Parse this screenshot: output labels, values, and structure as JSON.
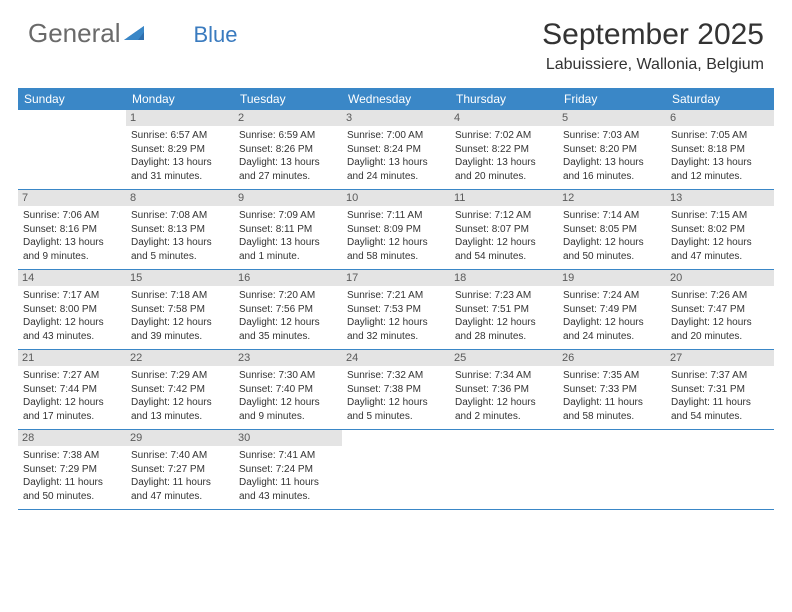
{
  "logo": {
    "text1": "General",
    "text2": "Blue"
  },
  "title": "September 2025",
  "location": "Labuissiere, Wallonia, Belgium",
  "colors": {
    "header_bar": "#3a87c7",
    "day_header_bg": "#e4e4e4",
    "logo_gray": "#6a6a6a",
    "logo_blue": "#3a7bbf",
    "text": "#333333",
    "background": "#ffffff"
  },
  "weekdays": [
    "Sunday",
    "Monday",
    "Tuesday",
    "Wednesday",
    "Thursday",
    "Friday",
    "Saturday"
  ],
  "weeks": [
    [
      {
        "n": "",
        "empty": true
      },
      {
        "n": "1",
        "sunrise": "Sunrise: 6:57 AM",
        "sunset": "Sunset: 8:29 PM",
        "day1": "Daylight: 13 hours",
        "day2": "and 31 minutes."
      },
      {
        "n": "2",
        "sunrise": "Sunrise: 6:59 AM",
        "sunset": "Sunset: 8:26 PM",
        "day1": "Daylight: 13 hours",
        "day2": "and 27 minutes."
      },
      {
        "n": "3",
        "sunrise": "Sunrise: 7:00 AM",
        "sunset": "Sunset: 8:24 PM",
        "day1": "Daylight: 13 hours",
        "day2": "and 24 minutes."
      },
      {
        "n": "4",
        "sunrise": "Sunrise: 7:02 AM",
        "sunset": "Sunset: 8:22 PM",
        "day1": "Daylight: 13 hours",
        "day2": "and 20 minutes."
      },
      {
        "n": "5",
        "sunrise": "Sunrise: 7:03 AM",
        "sunset": "Sunset: 8:20 PM",
        "day1": "Daylight: 13 hours",
        "day2": "and 16 minutes."
      },
      {
        "n": "6",
        "sunrise": "Sunrise: 7:05 AM",
        "sunset": "Sunset: 8:18 PM",
        "day1": "Daylight: 13 hours",
        "day2": "and 12 minutes."
      }
    ],
    [
      {
        "n": "7",
        "sunrise": "Sunrise: 7:06 AM",
        "sunset": "Sunset: 8:16 PM",
        "day1": "Daylight: 13 hours",
        "day2": "and 9 minutes."
      },
      {
        "n": "8",
        "sunrise": "Sunrise: 7:08 AM",
        "sunset": "Sunset: 8:13 PM",
        "day1": "Daylight: 13 hours",
        "day2": "and 5 minutes."
      },
      {
        "n": "9",
        "sunrise": "Sunrise: 7:09 AM",
        "sunset": "Sunset: 8:11 PM",
        "day1": "Daylight: 13 hours",
        "day2": "and 1 minute."
      },
      {
        "n": "10",
        "sunrise": "Sunrise: 7:11 AM",
        "sunset": "Sunset: 8:09 PM",
        "day1": "Daylight: 12 hours",
        "day2": "and 58 minutes."
      },
      {
        "n": "11",
        "sunrise": "Sunrise: 7:12 AM",
        "sunset": "Sunset: 8:07 PM",
        "day1": "Daylight: 12 hours",
        "day2": "and 54 minutes."
      },
      {
        "n": "12",
        "sunrise": "Sunrise: 7:14 AM",
        "sunset": "Sunset: 8:05 PM",
        "day1": "Daylight: 12 hours",
        "day2": "and 50 minutes."
      },
      {
        "n": "13",
        "sunrise": "Sunrise: 7:15 AM",
        "sunset": "Sunset: 8:02 PM",
        "day1": "Daylight: 12 hours",
        "day2": "and 47 minutes."
      }
    ],
    [
      {
        "n": "14",
        "sunrise": "Sunrise: 7:17 AM",
        "sunset": "Sunset: 8:00 PM",
        "day1": "Daylight: 12 hours",
        "day2": "and 43 minutes."
      },
      {
        "n": "15",
        "sunrise": "Sunrise: 7:18 AM",
        "sunset": "Sunset: 7:58 PM",
        "day1": "Daylight: 12 hours",
        "day2": "and 39 minutes."
      },
      {
        "n": "16",
        "sunrise": "Sunrise: 7:20 AM",
        "sunset": "Sunset: 7:56 PM",
        "day1": "Daylight: 12 hours",
        "day2": "and 35 minutes."
      },
      {
        "n": "17",
        "sunrise": "Sunrise: 7:21 AM",
        "sunset": "Sunset: 7:53 PM",
        "day1": "Daylight: 12 hours",
        "day2": "and 32 minutes."
      },
      {
        "n": "18",
        "sunrise": "Sunrise: 7:23 AM",
        "sunset": "Sunset: 7:51 PM",
        "day1": "Daylight: 12 hours",
        "day2": "and 28 minutes."
      },
      {
        "n": "19",
        "sunrise": "Sunrise: 7:24 AM",
        "sunset": "Sunset: 7:49 PM",
        "day1": "Daylight: 12 hours",
        "day2": "and 24 minutes."
      },
      {
        "n": "20",
        "sunrise": "Sunrise: 7:26 AM",
        "sunset": "Sunset: 7:47 PM",
        "day1": "Daylight: 12 hours",
        "day2": "and 20 minutes."
      }
    ],
    [
      {
        "n": "21",
        "sunrise": "Sunrise: 7:27 AM",
        "sunset": "Sunset: 7:44 PM",
        "day1": "Daylight: 12 hours",
        "day2": "and 17 minutes."
      },
      {
        "n": "22",
        "sunrise": "Sunrise: 7:29 AM",
        "sunset": "Sunset: 7:42 PM",
        "day1": "Daylight: 12 hours",
        "day2": "and 13 minutes."
      },
      {
        "n": "23",
        "sunrise": "Sunrise: 7:30 AM",
        "sunset": "Sunset: 7:40 PM",
        "day1": "Daylight: 12 hours",
        "day2": "and 9 minutes."
      },
      {
        "n": "24",
        "sunrise": "Sunrise: 7:32 AM",
        "sunset": "Sunset: 7:38 PM",
        "day1": "Daylight: 12 hours",
        "day2": "and 5 minutes."
      },
      {
        "n": "25",
        "sunrise": "Sunrise: 7:34 AM",
        "sunset": "Sunset: 7:36 PM",
        "day1": "Daylight: 12 hours",
        "day2": "and 2 minutes."
      },
      {
        "n": "26",
        "sunrise": "Sunrise: 7:35 AM",
        "sunset": "Sunset: 7:33 PM",
        "day1": "Daylight: 11 hours",
        "day2": "and 58 minutes."
      },
      {
        "n": "27",
        "sunrise": "Sunrise: 7:37 AM",
        "sunset": "Sunset: 7:31 PM",
        "day1": "Daylight: 11 hours",
        "day2": "and 54 minutes."
      }
    ],
    [
      {
        "n": "28",
        "sunrise": "Sunrise: 7:38 AM",
        "sunset": "Sunset: 7:29 PM",
        "day1": "Daylight: 11 hours",
        "day2": "and 50 minutes."
      },
      {
        "n": "29",
        "sunrise": "Sunrise: 7:40 AM",
        "sunset": "Sunset: 7:27 PM",
        "day1": "Daylight: 11 hours",
        "day2": "and 47 minutes."
      },
      {
        "n": "30",
        "sunrise": "Sunrise: 7:41 AM",
        "sunset": "Sunset: 7:24 PM",
        "day1": "Daylight: 11 hours",
        "day2": "and 43 minutes."
      },
      {
        "n": "",
        "empty": true
      },
      {
        "n": "",
        "empty": true
      },
      {
        "n": "",
        "empty": true
      },
      {
        "n": "",
        "empty": true
      }
    ]
  ]
}
